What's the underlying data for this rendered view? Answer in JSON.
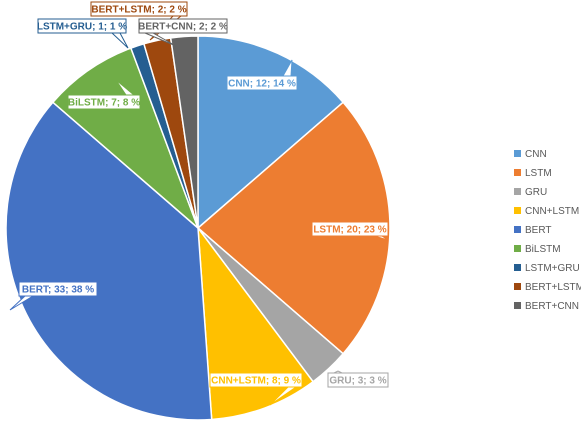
{
  "chart_data": {
    "type": "pie",
    "title": "",
    "legend_position": "right",
    "slices": [
      {
        "name": "CNN",
        "value": 12,
        "percent": "14 %",
        "color": "#5b9bd5",
        "label": "CNN; 12; 14 %"
      },
      {
        "name": "LSTM",
        "value": 20,
        "percent": "23 %",
        "color": "#ed7d31",
        "label": "LSTM; 20; 23 %"
      },
      {
        "name": "GRU",
        "value": 3,
        "percent": "3 %",
        "color": "#a5a5a5",
        "label": "GRU; 3; 3 %"
      },
      {
        "name": "CNN+LSTM",
        "value": 8,
        "percent": "9 %",
        "color": "#ffc000",
        "label": "CNN+LSTM; 8; 9 %"
      },
      {
        "name": "BERT",
        "value": 33,
        "percent": "38 %",
        "color": "#4472c4",
        "label": "BERT; 33; 38 %"
      },
      {
        "name": "BiLSTM",
        "value": 7,
        "percent": "8 %",
        "color": "#70ad47",
        "label": "BiLSTM; 7; 8 %"
      },
      {
        "name": "LSTM+GRU",
        "value": 1,
        "percent": "1 %",
        "color": "#255e91",
        "label": "LSTM+GRU; 1; 1 %"
      },
      {
        "name": "BERT+LSTM",
        "value": 2,
        "percent": "2 %",
        "color": "#9e480e",
        "label": "BERT+LSTM; 2; 2 %"
      },
      {
        "name": "BERT+CNN",
        "value": 2,
        "percent": "2 %",
        "color": "#636363",
        "label": "BERT+CNN; 2; 2 %"
      }
    ]
  }
}
